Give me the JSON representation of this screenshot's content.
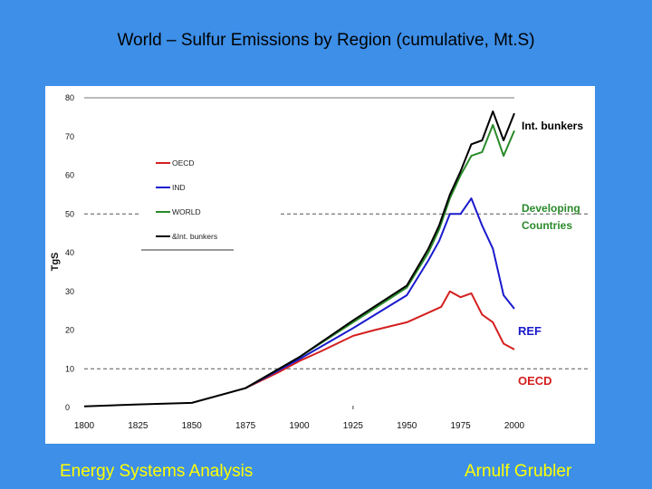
{
  "slide": {
    "title": "World – Sulfur Emissions by Region (cumulative, Mt.S)",
    "footer_left": "Energy Systems Analysis",
    "footer_right": "Arnulf Grubler"
  },
  "colors": {
    "background": "#3d8fe8",
    "footer_text": "#ffff00",
    "oecd": "#d42020",
    "ref": "#1a1acd",
    "world": "#2a8a2a",
    "bunkers": "#000000",
    "annotation_green": "#2a8a2a",
    "annotation_blue": "#1a1acd",
    "annotation_red": "#d42020"
  },
  "chart_data": {
    "type": "line",
    "title": "World – Sulfur Emissions by Region (cumulative, Mt.S)",
    "xlabel": "",
    "ylabel": "TgS",
    "xlim": [
      1800,
      2000
    ],
    "ylim": [
      0,
      80
    ],
    "xticks": [
      1800,
      1825,
      1850,
      1875,
      1900,
      1925,
      1950,
      1975,
      2000
    ],
    "yticks": [
      0,
      10,
      20,
      30,
      40,
      50,
      60,
      70,
      80
    ],
    "reference_lines": [
      10,
      50,
      80
    ],
    "legend": {
      "placement": "upper-left",
      "entries": [
        "OECD",
        "IND",
        "WORLD",
        "&Int. bunkers"
      ]
    },
    "series": [
      {
        "name": "OECD",
        "color_key": "oecd",
        "x": [
          1875,
          1890,
          1900,
          1910,
          1925,
          1935,
          1950,
          1960,
          1966,
          1970,
          1975,
          1980,
          1985,
          1990,
          1995,
          2000
        ],
        "values": [
          5,
          9,
          12,
          14.5,
          18.5,
          20,
          22,
          24.5,
          26,
          30,
          28.5,
          29.5,
          24,
          22,
          16.5,
          15
        ]
      },
      {
        "name": "REF",
        "color_key": "ref",
        "x": [
          1875,
          1900,
          1925,
          1950,
          1960,
          1965,
          1970,
          1975,
          1980,
          1985,
          1990,
          1995,
          2000
        ],
        "values": [
          5,
          12.5,
          20.5,
          29,
          38,
          43,
          50,
          50,
          54,
          47,
          41,
          29,
          25.5
        ]
      },
      {
        "name": "WORLD",
        "color_key": "world",
        "x": [
          1875,
          1900,
          1925,
          1950,
          1960,
          1965,
          1970,
          1975,
          1980,
          1985,
          1990,
          1995,
          2000
        ],
        "values": [
          5,
          13,
          22,
          31,
          40,
          46,
          54,
          60,
          65,
          66,
          73,
          65,
          71.5
        ]
      },
      {
        "name": "&Int. bunkers",
        "color_key": "bunkers",
        "x": [
          1800,
          1825,
          1850,
          1875,
          1900,
          1925,
          1950,
          1960,
          1965,
          1970,
          1975,
          1980,
          1985,
          1990,
          1995,
          2000
        ],
        "values": [
          0.3,
          0.8,
          1.2,
          5,
          13,
          22.5,
          31.5,
          41,
          47,
          55,
          61,
          68,
          69,
          76.5,
          69,
          76
        ]
      }
    ],
    "annotations": [
      {
        "id": "int-bunkers",
        "lines": [
          "Int. bunkers"
        ],
        "color_key": "bunkers"
      },
      {
        "id": "developing",
        "lines": [
          "Developing",
          "Countries"
        ],
        "color_key": "annotation_green"
      },
      {
        "id": "ref",
        "lines": [
          "REF"
        ],
        "color_key": "annotation_blue"
      },
      {
        "id": "oecd",
        "lines": [
          "OECD"
        ],
        "color_key": "annotation_red"
      }
    ]
  }
}
